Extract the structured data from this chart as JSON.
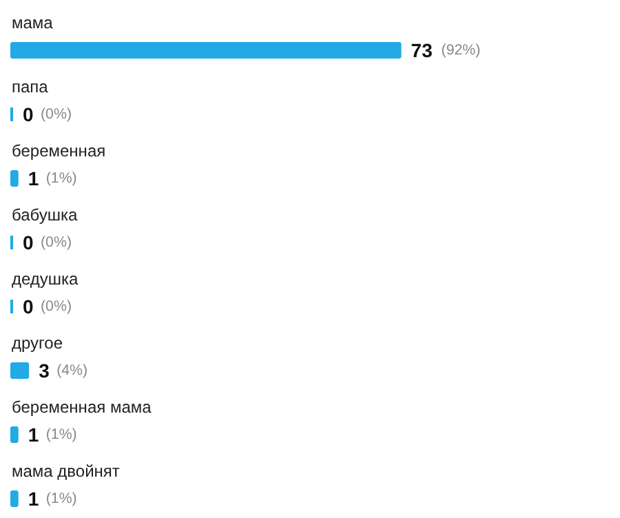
{
  "chart_data": {
    "type": "bar",
    "orientation": "horizontal",
    "categories": [
      "мама",
      "папа",
      "беременная",
      "бабушка",
      "дедушка",
      "другое",
      "беременная мама",
      "мама двойнят"
    ],
    "values": [
      73,
      0,
      1,
      0,
      0,
      3,
      1,
      1
    ],
    "color": "#22aae6",
    "data_labels": true,
    "annotations": [
      "(92%)",
      "(0%)",
      "(1%)",
      "(0%)",
      "(0%)",
      "(4%)",
      "(1%)",
      "(1%)"
    ]
  }
}
